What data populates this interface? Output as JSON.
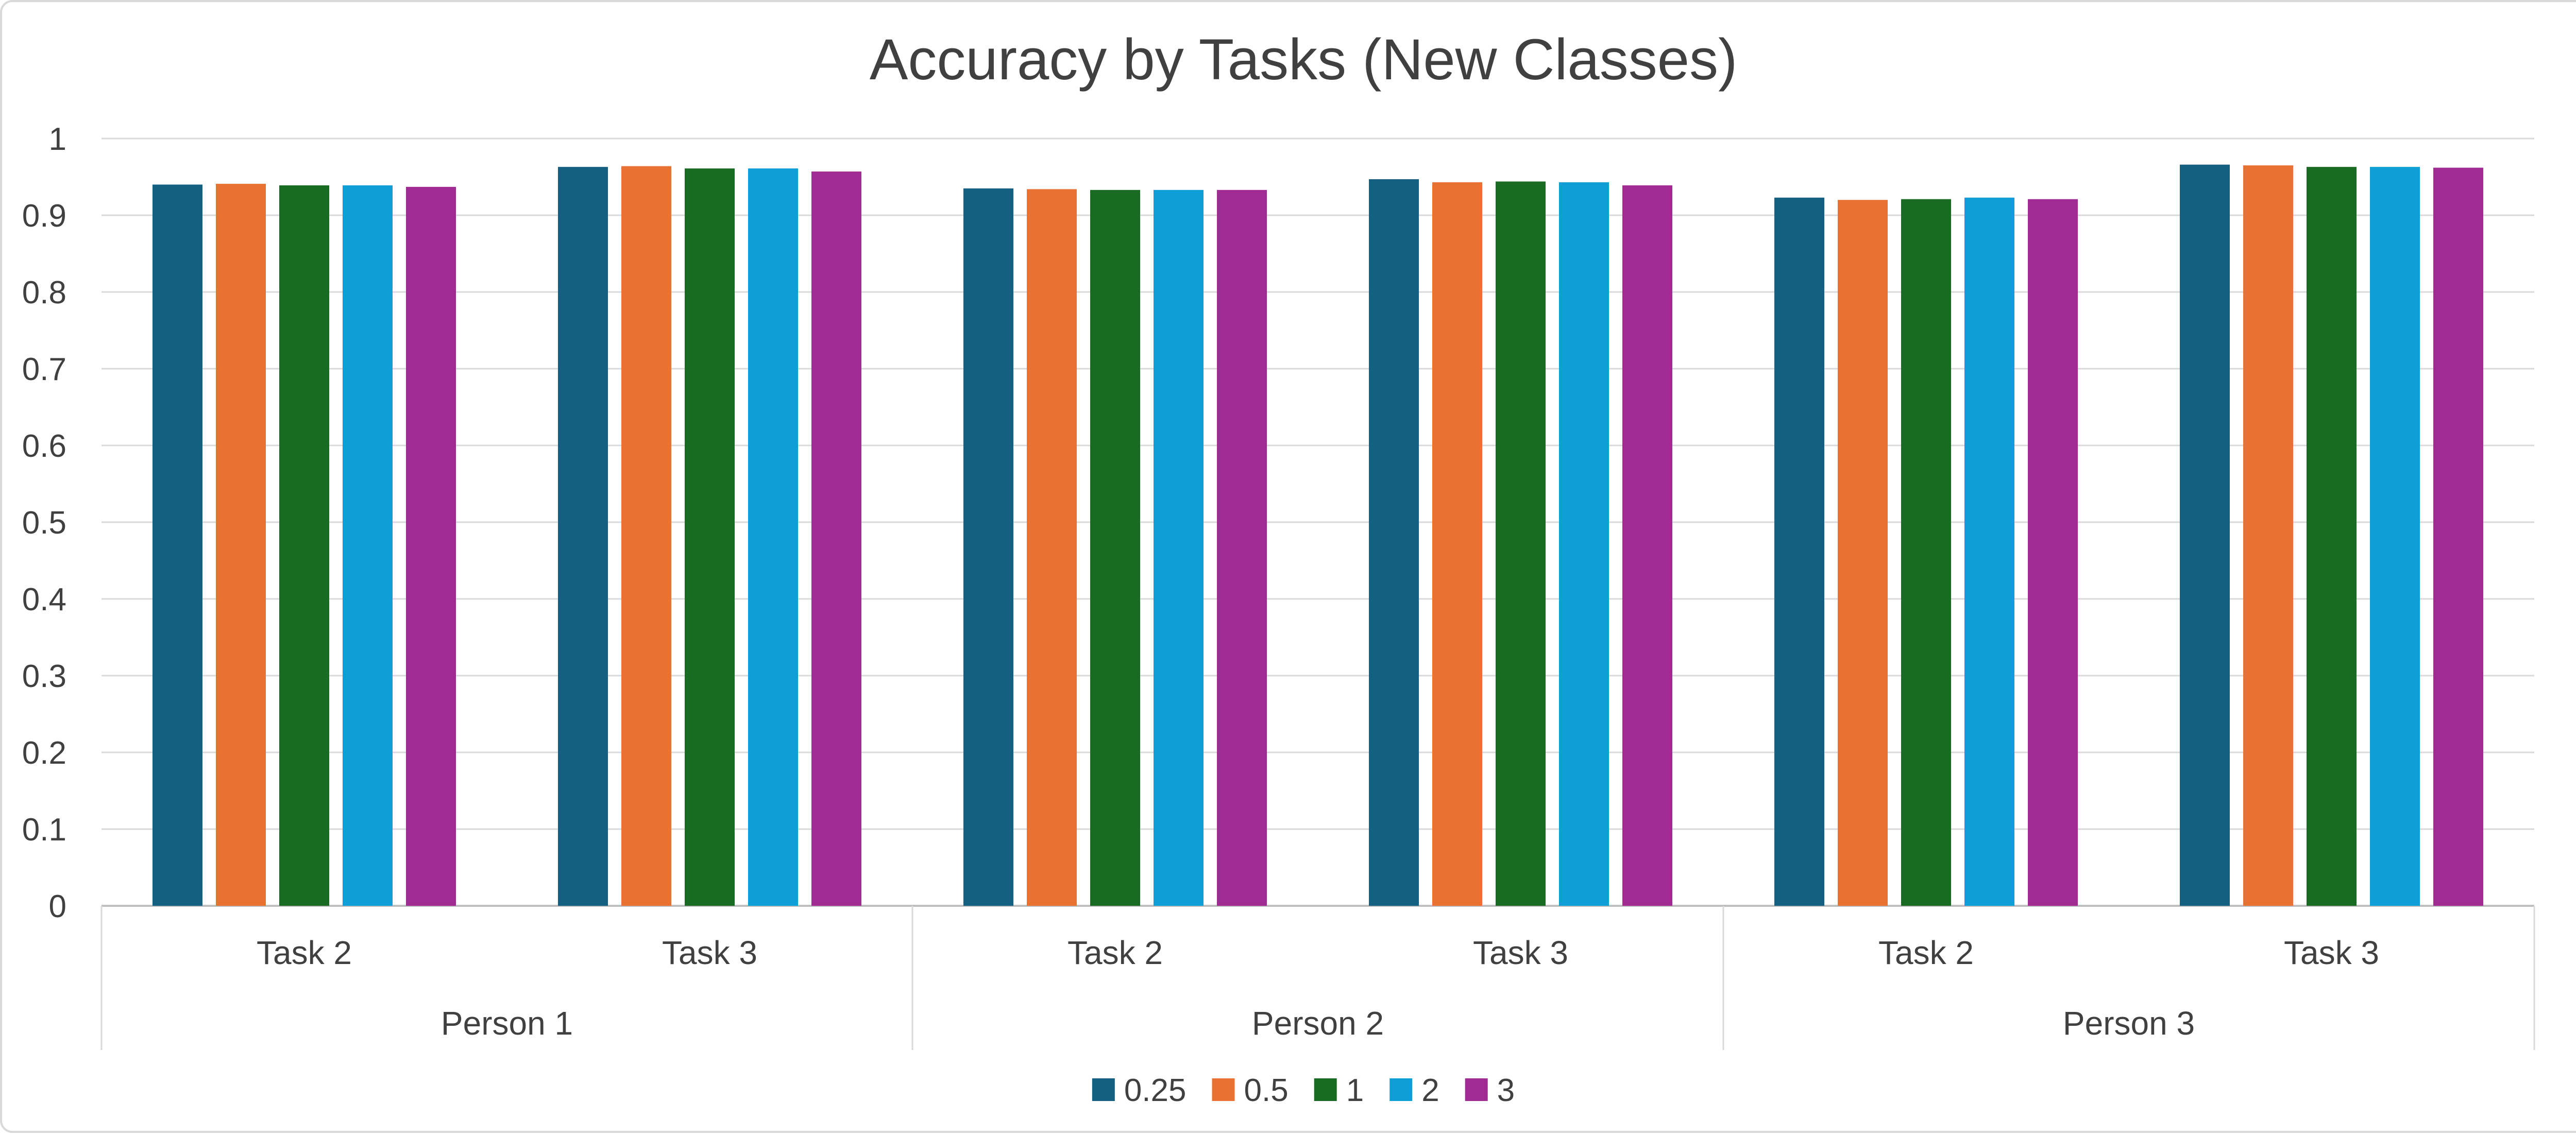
{
  "chart_data": {
    "type": "bar",
    "title": "Accuracy by Tasks (New Classes)",
    "xlabel": "",
    "ylabel": "",
    "ylim": [
      0,
      1
    ],
    "yticks": [
      "0",
      "0.1",
      "0.2",
      "0.3",
      "0.4",
      "0.5",
      "0.6",
      "0.7",
      "0.8",
      "0.9",
      "1"
    ],
    "grid": true,
    "legend_position": "bottom",
    "groups": [
      "Person 1",
      "Person 2",
      "Person 3"
    ],
    "categories": [
      "Task 2",
      "Task 3",
      "Task 2",
      "Task 3",
      "Task 2",
      "Task 3"
    ],
    "series": [
      {
        "name": "0.25",
        "color": "#156082",
        "values": [
          0.94,
          0.963,
          0.935,
          0.947,
          0.923,
          0.966
        ]
      },
      {
        "name": "0.5",
        "color": "#E97132",
        "values": [
          0.941,
          0.964,
          0.934,
          0.943,
          0.92,
          0.965
        ]
      },
      {
        "name": "1",
        "color": "#196B24",
        "values": [
          0.939,
          0.961,
          0.933,
          0.944,
          0.921,
          0.963
        ]
      },
      {
        "name": "2",
        "color": "#0F9ED5",
        "values": [
          0.939,
          0.961,
          0.933,
          0.943,
          0.923,
          0.963
        ]
      },
      {
        "name": "3",
        "color": "#A02B93",
        "values": [
          0.937,
          0.957,
          0.933,
          0.939,
          0.921,
          0.962
        ]
      }
    ]
  }
}
